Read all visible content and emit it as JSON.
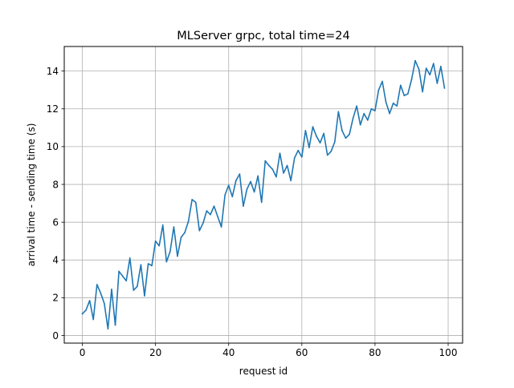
{
  "chart_data": {
    "type": "line",
    "title": "MLServer grpc, total time=24",
    "xlabel": "request id",
    "ylabel": "arrival time - sending time (s)",
    "xlim": [
      -4.95,
      103.95
    ],
    "ylim": [
      -0.4,
      15.3
    ],
    "grid": true,
    "xticks": [
      0,
      20,
      40,
      60,
      80,
      100
    ],
    "yticks": [
      0,
      2,
      4,
      6,
      8,
      10,
      12,
      14
    ],
    "line_color": "#1f77b4",
    "series": [
      {
        "x": [
          0,
          1,
          2,
          3,
          4,
          5,
          6,
          7,
          8,
          9,
          10,
          11,
          12,
          13,
          14,
          15,
          16,
          17,
          18,
          19,
          20,
          21,
          22,
          23,
          24,
          25,
          26,
          27,
          28,
          29,
          30,
          31,
          32,
          33,
          34,
          35,
          36,
          37,
          38,
          39,
          40,
          41,
          42,
          43,
          44,
          45,
          46,
          47,
          48,
          49,
          50,
          51,
          52,
          53,
          54,
          55,
          56,
          57,
          58,
          59,
          60,
          61,
          62,
          63,
          64,
          65,
          66,
          67,
          68,
          69,
          70,
          71,
          72,
          73,
          74,
          75,
          76,
          77,
          78,
          79,
          80,
          81,
          82,
          83,
          84,
          85,
          86,
          87,
          88,
          89,
          90,
          91,
          92,
          93,
          94,
          95,
          96,
          97,
          98,
          99
        ],
        "y": [
          1.15,
          1.35,
          1.85,
          0.85,
          2.7,
          2.25,
          1.7,
          0.35,
          2.45,
          0.55,
          3.4,
          3.15,
          2.9,
          4.1,
          2.4,
          2.6,
          3.75,
          2.1,
          3.8,
          3.7,
          5.0,
          4.75,
          5.85,
          3.9,
          4.45,
          5.75,
          4.2,
          5.2,
          5.45,
          6.05,
          7.2,
          7.05,
          5.55,
          5.95,
          6.6,
          6.4,
          6.85,
          6.3,
          5.75,
          7.45,
          7.95,
          7.35,
          8.2,
          8.55,
          6.85,
          7.75,
          8.15,
          7.6,
          8.45,
          7.05,
          9.25,
          9.0,
          8.8,
          8.4,
          9.65,
          8.6,
          9.0,
          8.2,
          9.4,
          9.8,
          9.45,
          10.85,
          9.95,
          11.05,
          10.55,
          10.2,
          10.7,
          9.55,
          9.75,
          10.25,
          11.85,
          10.85,
          10.45,
          10.65,
          11.5,
          12.15,
          11.15,
          11.75,
          11.4,
          12.0,
          11.9,
          13.0,
          13.45,
          12.35,
          11.75,
          12.3,
          12.15,
          13.25,
          12.7,
          12.8,
          13.55,
          14.55,
          14.1,
          12.9,
          14.15,
          13.8,
          14.4,
          13.35,
          14.25,
          13.1
        ]
      }
    ]
  }
}
